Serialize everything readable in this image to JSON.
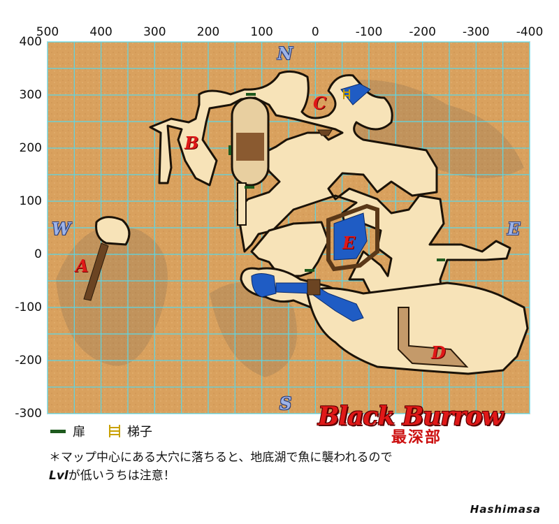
{
  "map": {
    "title": "Black Burrow",
    "subtitle": "最深部",
    "author": "Hashimasa",
    "x_axis_labels": [
      "500",
      "400",
      "300",
      "200",
      "100",
      "0",
      "-100",
      "-200",
      "-300",
      "-400"
    ],
    "y_axis_labels": [
      "400",
      "300",
      "200",
      "100",
      "0",
      "-100",
      "-200",
      "-300"
    ],
    "compass": {
      "north": "N",
      "south": "S",
      "west": "W",
      "east": "E"
    },
    "zones": [
      {
        "id": "A",
        "label": "A"
      },
      {
        "id": "B",
        "label": "B"
      },
      {
        "id": "C",
        "label": "C"
      },
      {
        "id": "D",
        "label": "D"
      },
      {
        "id": "E",
        "label": "E"
      }
    ],
    "colors": {
      "background_tan": "#d9a15e",
      "grid": "#5bd6e6",
      "tunnel": "#f7e3b8",
      "tunnel_outline": "#1a1208",
      "water": "#1f5cc4",
      "ramp": "#8a5a30",
      "door": "#1e5a1e",
      "ladder": "#c9a100"
    }
  },
  "legend": {
    "door_label": "扉",
    "ladder_label": "梯子",
    "door_icon": "door-icon",
    "ladder_icon": "ladder-icon"
  },
  "notes": {
    "line1": "＊マップ中心にある大穴に落ちると、地底湖で魚に襲われるので",
    "line2_bold": "Lvl",
    "line2_rest": "が低いうちは注意！"
  }
}
